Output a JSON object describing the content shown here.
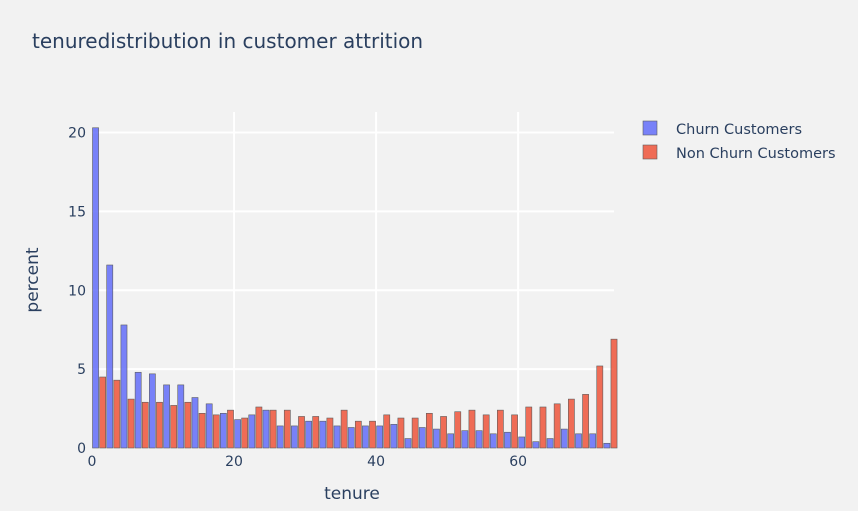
{
  "chart_data": {
    "type": "bar",
    "title": "tenuredistribution in customer attrition",
    "xlabel": "tenure",
    "ylabel": "percent",
    "xlim": [
      0,
      73.5
    ],
    "ylim": [
      0,
      21.3
    ],
    "xticks": [
      0,
      20,
      40,
      60
    ],
    "yticks": [
      0,
      5,
      10,
      15,
      20
    ],
    "grid": true,
    "legend_position": "top-right",
    "bin_width": 2,
    "series": [
      {
        "name": "Churn Customers",
        "color": "#636efa",
        "x": [
          0,
          2,
          4,
          6,
          8,
          10,
          12,
          14,
          16,
          18,
          20,
          22,
          24,
          26,
          28,
          30,
          32,
          34,
          36,
          38,
          40,
          42,
          44,
          46,
          48,
          50,
          52,
          54,
          56,
          58,
          60,
          62,
          64,
          66,
          68,
          70,
          72
        ],
        "values": [
          20.3,
          11.6,
          7.8,
          4.8,
          4.7,
          4.0,
          4.0,
          3.2,
          2.8,
          2.2,
          1.8,
          2.1,
          2.4,
          1.4,
          1.4,
          1.7,
          1.7,
          1.4,
          1.3,
          1.4,
          1.4,
          1.5,
          0.6,
          1.3,
          1.2,
          0.9,
          1.1,
          1.1,
          0.9,
          1.0,
          0.7,
          0.4,
          0.6,
          1.2,
          0.9,
          0.9,
          0.3
        ]
      },
      {
        "name": "Non Churn Customers",
        "color": "#ef553b",
        "x": [
          0,
          2,
          4,
          6,
          8,
          10,
          12,
          14,
          16,
          18,
          20,
          22,
          24,
          26,
          28,
          30,
          32,
          34,
          36,
          38,
          40,
          42,
          44,
          46,
          48,
          50,
          52,
          54,
          56,
          58,
          60,
          62,
          64,
          66,
          68,
          70,
          72
        ],
        "values": [
          4.5,
          4.3,
          3.1,
          2.9,
          2.9,
          2.7,
          2.9,
          2.2,
          2.1,
          2.4,
          1.9,
          2.6,
          2.4,
          2.4,
          2.0,
          2.0,
          1.9,
          2.4,
          1.7,
          1.7,
          2.1,
          1.9,
          1.9,
          2.2,
          2.0,
          2.3,
          2.4,
          2.1,
          2.4,
          2.1,
          2.6,
          2.6,
          2.8,
          3.1,
          3.4,
          5.2,
          6.9
        ]
      }
    ]
  }
}
